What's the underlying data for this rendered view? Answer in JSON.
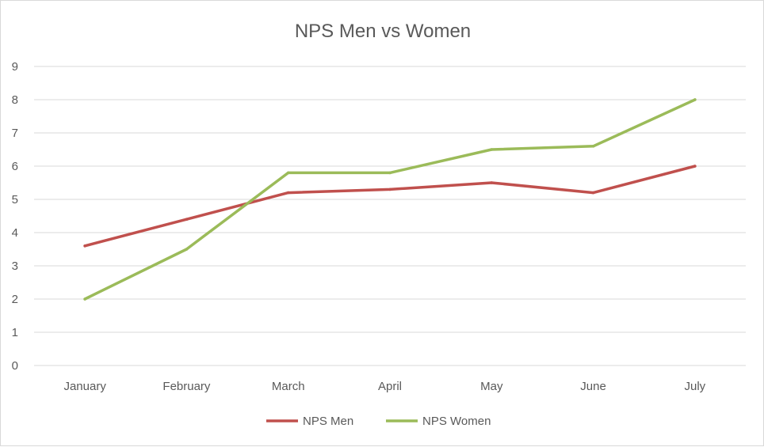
{
  "chart_data": {
    "type": "line",
    "title": "NPS Men vs Women",
    "xlabel": "",
    "ylabel": "",
    "categories": [
      "January",
      "February",
      "March",
      "April",
      "May",
      "June",
      "July"
    ],
    "ylim": [
      0,
      9
    ],
    "yticks": [
      0,
      1,
      2,
      3,
      4,
      5,
      6,
      7,
      8,
      9
    ],
    "grid": true,
    "legend_position": "bottom",
    "series": [
      {
        "name": "NPS Men",
        "color": "#c0504d",
        "values": [
          3.6,
          4.4,
          5.2,
          5.3,
          5.5,
          5.2,
          6.0
        ]
      },
      {
        "name": "NPS Women",
        "color": "#9bbb59",
        "values": [
          2.0,
          3.5,
          5.8,
          5.8,
          6.5,
          6.6,
          8.0
        ]
      }
    ]
  }
}
